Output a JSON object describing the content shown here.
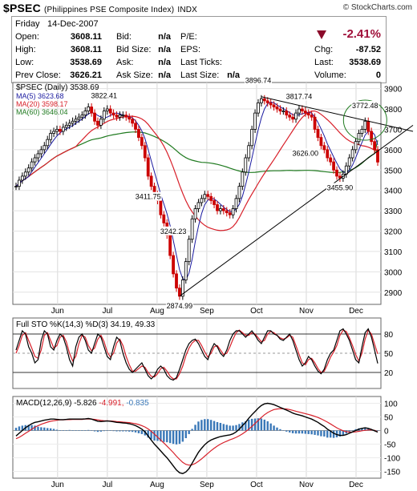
{
  "header": {
    "symbol": "$PSEC",
    "name": "(Philippines PSE Composite Index)",
    "exchange": "INDX",
    "credit": "© StockCharts.com"
  },
  "quote": {
    "date_day": "Friday",
    "date": "14-Dec-2007",
    "open_label": "Open:",
    "open": "3608.11",
    "high_label": "High:",
    "high": "3608.11",
    "low_label": "Low:",
    "low": "3538.69",
    "prevclose_label": "Prev Close:",
    "prevclose": "3626.21",
    "bid_label": "Bid:",
    "bid": "n/a",
    "bidsize_label": "Bid Size:",
    "bidsize": "n/a",
    "ask_label": "Ask:",
    "ask": "n/a",
    "asksize_label": "Ask Size:",
    "asksize": "n/a",
    "pe_label": "P/E:",
    "eps_label": "EPS:",
    "lastticks_label": "Last Ticks:",
    "lastsize_label": "Last Size:",
    "lastsize": "n/a",
    "pct": "-2.41%",
    "chg_label": "Chg:",
    "chg": "-87.52",
    "last_label": "Last:",
    "last": "3538.69",
    "volume_label": "Volume:",
    "volume": "0"
  },
  "colors": {
    "price": "#000000",
    "ma5": "#1a1aa0",
    "ma20": "#d8202a",
    "ma60": "#1f7a1f",
    "sto_k": "#000000",
    "sto_d": "#d8202a",
    "macd": "#000000",
    "signal": "#d8202a",
    "hist": "#3a78b8",
    "up": "#000000",
    "down": "#cc0000"
  },
  "chart_data": [
    {
      "type": "line",
      "legend": {
        "price": "$PSEC (Daily) 3538.69",
        "ma5": "MA(5) 3623.68",
        "ma20": "MA(20) 3598.17",
        "ma60": "MA(60) 3646.04"
      },
      "x_ticks": [
        "Jun",
        "Jul",
        "Aug",
        "Sep",
        "Oct",
        "Nov",
        "Dec"
      ],
      "y_ticks": [
        2900,
        3000,
        3100,
        3200,
        3300,
        3400,
        3500,
        3600,
        3700,
        3800,
        3900
      ],
      "ylim": [
        2840,
        3930
      ],
      "annotations": [
        {
          "label": "3822.41",
          "value": 3822.41
        },
        {
          "label": "3411.75",
          "value": 3411.75
        },
        {
          "label": "3242.23",
          "value": 3242.23
        },
        {
          "label": "2874.99",
          "value": 2874.99
        },
        {
          "label": "3896.74",
          "value": 3896.74
        },
        {
          "label": "3817.74",
          "value": 3817.74
        },
        {
          "label": "3626.00",
          "value": 3626.0
        },
        {
          "label": "3455.90",
          "value": 3455.9
        },
        {
          "label": "3772.48",
          "value": 3772.48
        }
      ],
      "close": [
        3420,
        3450,
        3470,
        3490,
        3510,
        3540,
        3560,
        3580,
        3600,
        3620,
        3650,
        3680,
        3690,
        3700,
        3690,
        3710,
        3720,
        3730,
        3740,
        3750,
        3760,
        3770,
        3790,
        3810,
        3780,
        3740,
        3720,
        3750,
        3790,
        3800,
        3780,
        3770,
        3760,
        3770,
        3770,
        3760,
        3750,
        3730,
        3700,
        3660,
        3620,
        3560,
        3470,
        3420,
        3380,
        3350,
        3280,
        3240,
        3180,
        3080,
        2990,
        2920,
        2880,
        2960,
        3050,
        3160,
        3260,
        3310,
        3340,
        3360,
        3380,
        3370,
        3350,
        3330,
        3300,
        3310,
        3300,
        3290,
        3280,
        3310,
        3360,
        3420,
        3490,
        3560,
        3620,
        3700,
        3780,
        3830,
        3850,
        3840,
        3830,
        3820,
        3810,
        3800,
        3790,
        3790,
        3770,
        3760,
        3750,
        3780,
        3800,
        3790,
        3780,
        3770,
        3760,
        3700,
        3660,
        3620,
        3600,
        3560,
        3540,
        3500,
        3470,
        3460,
        3480,
        3520,
        3560,
        3600,
        3640,
        3680,
        3700,
        3740,
        3690,
        3640,
        3600,
        3539
      ],
      "ma5_last": 3623.68,
      "ma20_last": 3598.17,
      "ma60_last": 3646.04
    },
    {
      "type": "line",
      "legend": "Full STO %K(14,3) %D(3) 34.19, 49.33",
      "y_ticks": [
        20,
        50,
        80
      ],
      "ylim": [
        0,
        100
      ],
      "k": [
        55,
        70,
        85,
        80,
        60,
        50,
        35,
        40,
        70,
        85,
        80,
        60,
        55,
        70,
        80,
        75,
        60,
        40,
        30,
        60,
        75,
        80,
        70,
        55,
        50,
        65,
        80,
        75,
        60,
        45,
        40,
        60,
        75,
        70,
        50,
        35,
        25,
        20,
        25,
        30,
        35,
        25,
        15,
        10,
        15,
        25,
        30,
        25,
        15,
        10,
        8,
        12,
        25,
        40,
        55,
        65,
        70,
        72,
        65,
        55,
        45,
        40,
        55,
        65,
        60,
        50,
        45,
        55,
        70,
        80,
        85,
        85,
        80,
        75,
        80,
        85,
        78,
        70,
        65,
        75,
        85,
        85,
        80,
        78,
        72,
        70,
        75,
        80,
        70,
        55,
        40,
        30,
        35,
        45,
        40,
        30,
        22,
        18,
        25,
        40,
        50,
        55,
        70,
        85,
        88,
        80,
        70,
        55,
        40,
        35,
        60,
        82,
        88,
        75,
        55,
        34
      ],
      "d": [
        50,
        62,
        78,
        82,
        70,
        58,
        45,
        42,
        55,
        78,
        82,
        70,
        58,
        62,
        75,
        78,
        68,
        50,
        38,
        45,
        65,
        78,
        75,
        62,
        54,
        58,
        72,
        78,
        68,
        52,
        44,
        50,
        66,
        72,
        62,
        45,
        32,
        22,
        22,
        26,
        30,
        28,
        20,
        14,
        13,
        18,
        26,
        28,
        22,
        14,
        10,
        10,
        18,
        30,
        46,
        58,
        66,
        70,
        70,
        62,
        52,
        44,
        50,
        60,
        62,
        55,
        48,
        50,
        60,
        72,
        82,
        86,
        82,
        78,
        78,
        82,
        80,
        74,
        68,
        70,
        80,
        84,
        82,
        78,
        74,
        72,
        74,
        78,
        75,
        62,
        48,
        35,
        32,
        40,
        42,
        35,
        26,
        20,
        22,
        32,
        44,
        52,
        62,
        78,
        86,
        84,
        74,
        62,
        48,
        38,
        50,
        72,
        86,
        80,
        64,
        49
      ]
    },
    {
      "type": "line",
      "legend": {
        "macd": "MACD(12,26,9) -5.826",
        "signal": "-4.991",
        "hist": "-0.835"
      },
      "y_ticks": [
        -150,
        -100,
        -50,
        0,
        50,
        100
      ],
      "ylim": [
        -175,
        125
      ],
      "x_ticks": [
        "Jun",
        "Jul",
        "Aug",
        "Sep",
        "Oct",
        "Nov",
        "Dec"
      ],
      "macd": [
        -20,
        -10,
        0,
        10,
        18,
        25,
        30,
        32,
        35,
        38,
        40,
        42,
        42,
        41,
        40,
        40,
        41,
        42,
        42,
        42,
        42,
        42,
        43,
        44,
        42,
        38,
        34,
        33,
        34,
        35,
        34,
        32,
        30,
        29,
        28,
        27,
        25,
        22,
        18,
        12,
        5,
        -5,
        -20,
        -35,
        -50,
        -62,
        -75,
        -88,
        -100,
        -115,
        -130,
        -145,
        -155,
        -158,
        -152,
        -140,
        -120,
        -100,
        -80,
        -65,
        -52,
        -42,
        -35,
        -30,
        -26,
        -22,
        -20,
        -18,
        -16,
        -12,
        -5,
        5,
        18,
        30,
        45,
        58,
        70,
        82,
        92,
        98,
        100,
        98,
        95,
        90,
        85,
        80,
        75,
        70,
        64,
        60,
        57,
        54,
        50,
        46,
        42,
        36,
        30,
        22,
        15,
        5,
        -2,
        -10,
        -15,
        -18,
        -18,
        -15,
        -10,
        -5,
        0,
        5,
        8,
        10,
        8,
        4,
        -1,
        -6
      ],
      "signal": [
        -30,
        -25,
        -18,
        -10,
        -3,
        5,
        12,
        18,
        23,
        27,
        31,
        34,
        36,
        38,
        39,
        39,
        40,
        40,
        41,
        41,
        41,
        41,
        42,
        42,
        42,
        41,
        39,
        37,
        36,
        36,
        35,
        34,
        33,
        32,
        31,
        30,
        29,
        27,
        25,
        22,
        18,
        13,
        6,
        -3,
        -13,
        -24,
        -35,
        -46,
        -57,
        -69,
        -81,
        -94,
        -106,
        -117,
        -124,
        -127,
        -126,
        -121,
        -113,
        -104,
        -94,
        -84,
        -74,
        -65,
        -57,
        -50,
        -44,
        -39,
        -34,
        -30,
        -25,
        -19,
        -12,
        -4,
        5,
        15,
        26,
        37,
        48,
        58,
        66,
        72,
        77,
        79,
        80,
        80,
        79,
        77,
        74,
        71,
        68,
        65,
        62,
        59,
        56,
        52,
        48,
        43,
        37,
        31,
        24,
        17,
        10,
        4,
        -1,
        -4,
        -6,
        -6,
        -5,
        -3,
        -1,
        1,
        2,
        2,
        1,
        -5
      ]
    }
  ]
}
